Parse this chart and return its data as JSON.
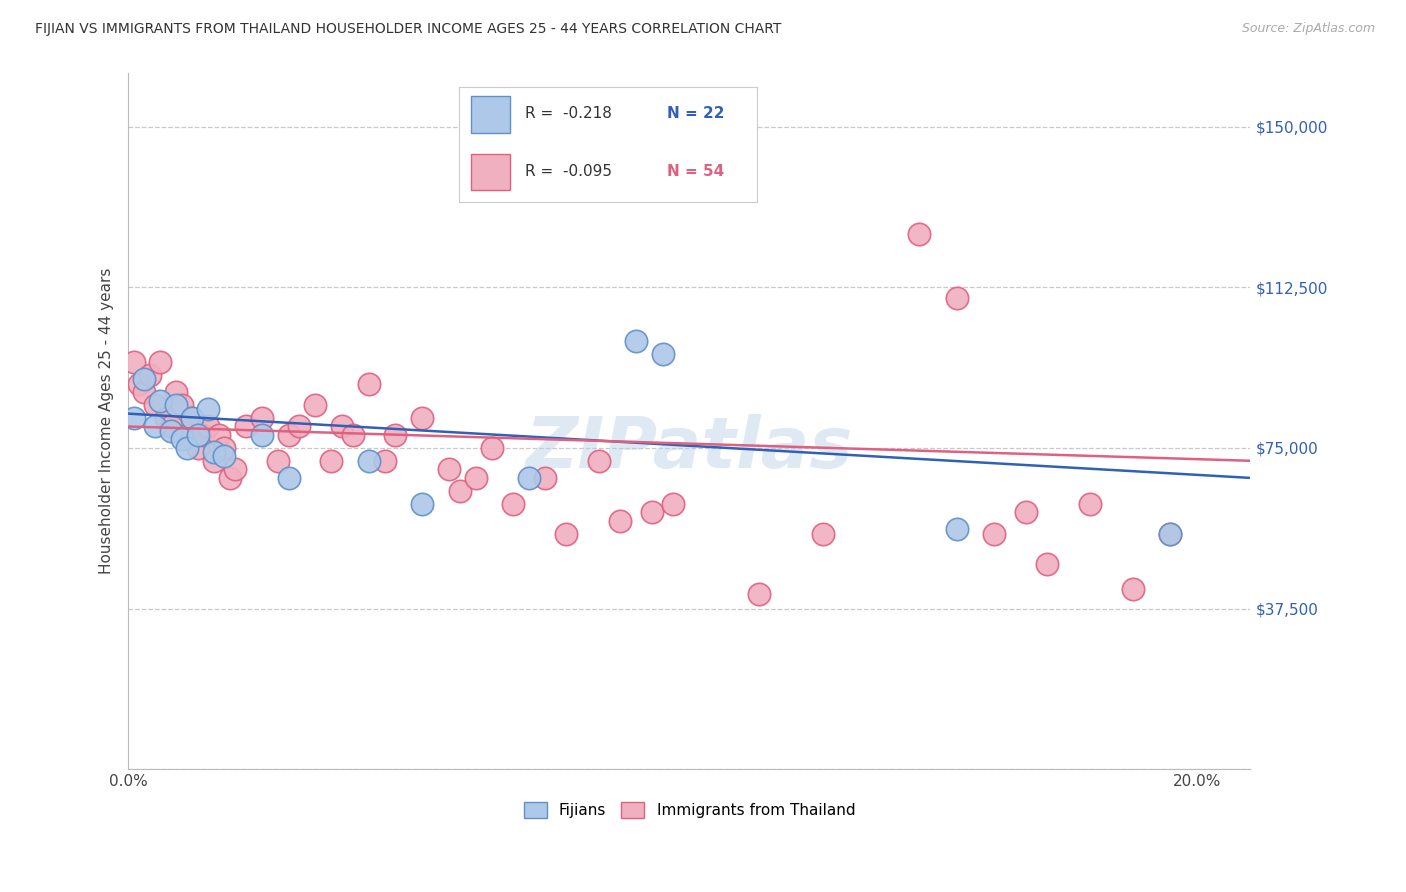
{
  "title": "FIJIAN VS IMMIGRANTS FROM THAILAND HOUSEHOLDER INCOME AGES 25 - 44 YEARS CORRELATION CHART",
  "source": "Source: ZipAtlas.com",
  "ylabel": "Householder Income Ages 25 - 44 years",
  "xlim": [
    0.0,
    0.21
  ],
  "ylim": [
    0,
    162500
  ],
  "yticks": [
    0,
    37500,
    75000,
    112500,
    150000
  ],
  "ytick_labels": [
    "",
    "$37,500",
    "$75,000",
    "$112,500",
    "$150,000"
  ],
  "xticks": [
    0.0,
    0.04,
    0.08,
    0.12,
    0.16,
    0.2
  ],
  "xtick_labels": [
    "0.0%",
    "",
    "",
    "",
    "",
    "20.0%"
  ],
  "grid_color": "#c8c8c8",
  "background_color": "#ffffff",
  "fijian_color": "#adc8e8",
  "fijian_edge_color": "#6090c8",
  "thailand_color": "#f0b0c0",
  "thailand_edge_color": "#e06080",
  "fijian_line_color": "#3060b8",
  "thailand_line_color": "#e06080",
  "legend_R_fijian": "R =  -0.218",
  "legend_N_fijian": "N = 22",
  "legend_R_thailand": "R =  -0.095",
  "legend_N_thailand": "N = 54",
  "watermark": "ZIPatlas",
  "fijian_x": [
    0.001,
    0.003,
    0.005,
    0.006,
    0.008,
    0.009,
    0.01,
    0.011,
    0.012,
    0.013,
    0.015,
    0.016,
    0.018,
    0.025,
    0.03,
    0.045,
    0.055,
    0.075,
    0.095,
    0.1,
    0.155,
    0.195
  ],
  "fijian_y": [
    82000,
    91000,
    80000,
    86000,
    79000,
    85000,
    77000,
    75000,
    82000,
    78000,
    84000,
    74000,
    73000,
    78000,
    68000,
    72000,
    62000,
    68000,
    100000,
    97000,
    56000,
    55000
  ],
  "thailand_x": [
    0.001,
    0.002,
    0.003,
    0.004,
    0.005,
    0.006,
    0.007,
    0.008,
    0.009,
    0.01,
    0.011,
    0.012,
    0.013,
    0.014,
    0.015,
    0.016,
    0.017,
    0.018,
    0.019,
    0.02,
    0.022,
    0.025,
    0.028,
    0.03,
    0.032,
    0.035,
    0.038,
    0.04,
    0.042,
    0.045,
    0.048,
    0.05,
    0.055,
    0.06,
    0.062,
    0.065,
    0.068,
    0.072,
    0.078,
    0.082,
    0.088,
    0.092,
    0.098,
    0.102,
    0.118,
    0.13,
    0.148,
    0.155,
    0.162,
    0.168,
    0.172,
    0.18,
    0.188,
    0.195
  ],
  "thailand_y": [
    95000,
    90000,
    88000,
    92000,
    85000,
    95000,
    82000,
    80000,
    88000,
    85000,
    78000,
    82000,
    75000,
    78000,
    80000,
    72000,
    78000,
    75000,
    68000,
    70000,
    80000,
    82000,
    72000,
    78000,
    80000,
    85000,
    72000,
    80000,
    78000,
    90000,
    72000,
    78000,
    82000,
    70000,
    65000,
    68000,
    75000,
    62000,
    68000,
    55000,
    72000,
    58000,
    60000,
    62000,
    41000,
    55000,
    125000,
    110000,
    55000,
    60000,
    48000,
    62000,
    42000,
    55000
  ],
  "fijian_line_y0": 83000,
  "fijian_line_y1": 68000,
  "thailand_line_y0": 80000,
  "thailand_line_y1": 72000
}
